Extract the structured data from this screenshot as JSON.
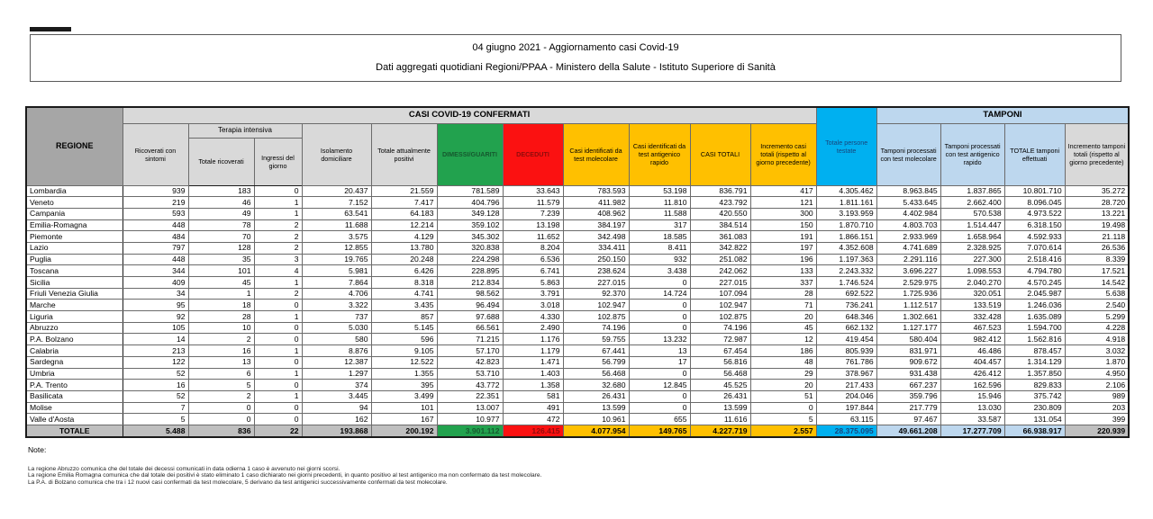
{
  "page": {
    "title_line1": "04 giugno 2021 - Aggiornamento casi Covid-19",
    "title_line2": "Dati aggregati quotidiani Regioni/PPAA - Ministero della Salute - Istituto Superiore di Sanità"
  },
  "colors": {
    "green": "#22a24e",
    "red": "#fb1111",
    "amber": "#ffc000",
    "cyan_blue": "#00b0f0",
    "light_blue": "#bdd7ee",
    "header_light_gray": "#d9d9d9",
    "regione_gray": "#a6a6a6",
    "total_row_gray": "#bfbfbf"
  },
  "table": {
    "headers": {
      "regione": "REGIONE",
      "casi_confermati_group": "CASI COVID-19 CONFERMATI",
      "tamponi_group": "TAMPONI",
      "terapia_intensiva_group": "Terapia intensiva",
      "ricoverati": "Ricoverati con sintomi",
      "totale_ricoverati": "Totale ricoverati",
      "ingressi_giorno": "Ingressi del giorno",
      "isolamento": "Isolamento domiciliare",
      "attualmente_positivi": "Totale attualmente positivi",
      "dimessi_guariti": "DIMESSI/GUARITI",
      "deceduti": "DECEDUTI",
      "casi_molecolare": "Casi identificati da test molecolare",
      "casi_antigenico": "Casi identificati da test antigenico rapido",
      "casi_totali": "CASI TOTALI",
      "incremento_casi": "Incremento casi totali (rispetto al giorno precedente)",
      "persone_testate": "Totale persone testate",
      "tamponi_molecolare": "Tamponi processati con test molecolare",
      "tamponi_antigenico": "Tamponi processati con test antigenico rapido",
      "totale_tamponi": "TOTALE tamponi effettuati",
      "incremento_tamponi": "Incremento tamponi totali (rispetto al giorno precedente)"
    },
    "rows": [
      {
        "regione": "Lombardia",
        "values": [
          "939",
          "183",
          "0",
          "20.437",
          "21.559",
          "781.589",
          "33.643",
          "783.593",
          "53.198",
          "836.791",
          "417",
          "4.305.462",
          "8.963.845",
          "1.837.865",
          "10.801.710",
          "35.272"
        ]
      },
      {
        "regione": "Veneto",
        "values": [
          "219",
          "46",
          "1",
          "7.152",
          "7.417",
          "404.796",
          "11.579",
          "411.982",
          "11.810",
          "423.792",
          "121",
          "1.811.161",
          "5.433.645",
          "2.662.400",
          "8.096.045",
          "28.720"
        ]
      },
      {
        "regione": "Campania",
        "values": [
          "593",
          "49",
          "1",
          "63.541",
          "64.183",
          "349.128",
          "7.239",
          "408.962",
          "11.588",
          "420.550",
          "300",
          "3.193.959",
          "4.402.984",
          "570.538",
          "4.973.522",
          "13.221"
        ]
      },
      {
        "regione": "Emilia-Romagna",
        "values": [
          "448",
          "78",
          "2",
          "11.688",
          "12.214",
          "359.102",
          "13.198",
          "384.197",
          "317",
          "384.514",
          "150",
          "1.870.710",
          "4.803.703",
          "1.514.447",
          "6.318.150",
          "19.498"
        ]
      },
      {
        "regione": "Piemonte",
        "values": [
          "484",
          "70",
          "2",
          "3.575",
          "4.129",
          "345.302",
          "11.652",
          "342.498",
          "18.585",
          "361.083",
          "191",
          "1.866.151",
          "2.933.969",
          "1.658.964",
          "4.592.933",
          "21.118"
        ]
      },
      {
        "regione": "Lazio",
        "values": [
          "797",
          "128",
          "2",
          "12.855",
          "13.780",
          "320.838",
          "8.204",
          "334.411",
          "8.411",
          "342.822",
          "197",
          "4.352.608",
          "4.741.689",
          "2.328.925",
          "7.070.614",
          "26.536"
        ]
      },
      {
        "regione": "Puglia",
        "values": [
          "448",
          "35",
          "3",
          "19.765",
          "20.248",
          "224.298",
          "6.536",
          "250.150",
          "932",
          "251.082",
          "196",
          "1.197.363",
          "2.291.116",
          "227.300",
          "2.518.416",
          "8.339"
        ]
      },
      {
        "regione": "Toscana",
        "values": [
          "344",
          "101",
          "4",
          "5.981",
          "6.426",
          "228.895",
          "6.741",
          "238.624",
          "3.438",
          "242.062",
          "133",
          "2.243.332",
          "3.696.227",
          "1.098.553",
          "4.794.780",
          "17.521"
        ]
      },
      {
        "regione": "Sicilia",
        "values": [
          "409",
          "45",
          "1",
          "7.864",
          "8.318",
          "212.834",
          "5.863",
          "227.015",
          "0",
          "227.015",
          "337",
          "1.746.524",
          "2.529.975",
          "2.040.270",
          "4.570.245",
          "14.542"
        ]
      },
      {
        "regione": "Friuli Venezia Giulia",
        "values": [
          "34",
          "1",
          "2",
          "4.706",
          "4.741",
          "98.562",
          "3.791",
          "92.370",
          "14.724",
          "107.094",
          "28",
          "692.522",
          "1.725.936",
          "320.051",
          "2.045.987",
          "5.638"
        ]
      },
      {
        "regione": "Marche",
        "values": [
          "95",
          "18",
          "0",
          "3.322",
          "3.435",
          "96.494",
          "3.018",
          "102.947",
          "0",
          "102.947",
          "71",
          "736.241",
          "1.112.517",
          "133.519",
          "1.246.036",
          "2.540"
        ]
      },
      {
        "regione": "Liguria",
        "values": [
          "92",
          "28",
          "1",
          "737",
          "857",
          "97.688",
          "4.330",
          "102.875",
          "0",
          "102.875",
          "20",
          "648.346",
          "1.302.661",
          "332.428",
          "1.635.089",
          "5.299"
        ]
      },
      {
        "regione": "Abruzzo",
        "values": [
          "105",
          "10",
          "0",
          "5.030",
          "5.145",
          "66.561",
          "2.490",
          "74.196",
          "0",
          "74.196",
          "45",
          "662.132",
          "1.127.177",
          "467.523",
          "1.594.700",
          "4.228"
        ]
      },
      {
        "regione": "P.A. Bolzano",
        "values": [
          "14",
          "2",
          "0",
          "580",
          "596",
          "71.215",
          "1.176",
          "59.755",
          "13.232",
          "72.987",
          "12",
          "419.454",
          "580.404",
          "982.412",
          "1.562.816",
          "4.918"
        ]
      },
      {
        "regione": "Calabria",
        "values": [
          "213",
          "16",
          "1",
          "8.876",
          "9.105",
          "57.170",
          "1.179",
          "67.441",
          "13",
          "67.454",
          "186",
          "805.939",
          "831.971",
          "46.486",
          "878.457",
          "3.032"
        ]
      },
      {
        "regione": "Sardegna",
        "values": [
          "122",
          "13",
          "0",
          "12.387",
          "12.522",
          "42.823",
          "1.471",
          "56.799",
          "17",
          "56.816",
          "48",
          "761.786",
          "909.672",
          "404.457",
          "1.314.129",
          "1.870"
        ]
      },
      {
        "regione": "Umbria",
        "values": [
          "52",
          "6",
          "1",
          "1.297",
          "1.355",
          "53.710",
          "1.403",
          "56.468",
          "0",
          "56.468",
          "29",
          "378.967",
          "931.438",
          "426.412",
          "1.357.850",
          "4.950"
        ]
      },
      {
        "regione": "P.A. Trento",
        "values": [
          "16",
          "5",
          "0",
          "374",
          "395",
          "43.772",
          "1.358",
          "32.680",
          "12.845",
          "45.525",
          "20",
          "217.433",
          "667.237",
          "162.596",
          "829.833",
          "2.106"
        ]
      },
      {
        "regione": "Basilicata",
        "values": [
          "52",
          "2",
          "1",
          "3.445",
          "3.499",
          "22.351",
          "581",
          "26.431",
          "0",
          "26.431",
          "51",
          "204.046",
          "359.796",
          "15.946",
          "375.742",
          "989"
        ]
      },
      {
        "regione": "Molise",
        "values": [
          "7",
          "0",
          "0",
          "94",
          "101",
          "13.007",
          "491",
          "13.599",
          "0",
          "13.599",
          "0",
          "197.844",
          "217.779",
          "13.030",
          "230.809",
          "203"
        ]
      },
      {
        "regione": "Valle d'Aosta",
        "values": [
          "5",
          "0",
          "0",
          "162",
          "167",
          "10.977",
          "472",
          "10.961",
          "655",
          "11.616",
          "5",
          "63.115",
          "97.467",
          "33.587",
          "131.054",
          "399"
        ]
      }
    ],
    "total_row": {
      "label": "TOTALE",
      "values": [
        "5.488",
        "836",
        "22",
        "193.868",
        "200.192",
        "3.901.112",
        "126.415",
        "4.077.954",
        "149.765",
        "4.227.719",
        "2.557",
        "28.375.095",
        "49.661.208",
        "17.277.709",
        "66.938.917",
        "220.939"
      ]
    }
  },
  "notes": {
    "title": "Note:",
    "lines": [
      "La regione Abruzzo comunica che del totale dei decessi comunicati in data odierna 1 caso è avvenuto nei giorni scorsi.",
      "La regione Emilia Romagna comunica che dal totale dei positivi è stato eliminato 1 caso dichiarato nei giorni precedenti, in quanto positivo al test antigenico ma non confermato da test molecolare.",
      "La P.A. di Bolzano comunica che tra i 12 nuovi casi confermati da test molecolare, 5 derivano da test antigenici successivamente confermati da test molecolare."
    ]
  }
}
